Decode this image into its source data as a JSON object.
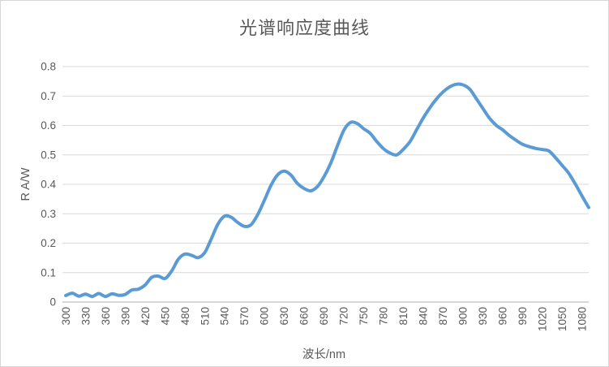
{
  "chart": {
    "title": "光谱响应度曲线",
    "x_axis_title": "波长/nm",
    "y_axis_title": "R A/W"
  },
  "chart_data": {
    "type": "line",
    "title": "光谱响应度曲线",
    "xlabel": "波长/nm",
    "ylabel": "R A/W",
    "legend": "none",
    "grid": "horizontal",
    "line_color": "#5b9bd5",
    "style": {
      "grid_color": "#d9d9d9",
      "axis_color": "#bfbfbf",
      "text_color": "#595959",
      "background": "#ffffff"
    },
    "xlim": [
      300,
      1090
    ],
    "ylim": [
      0,
      0.8
    ],
    "x_ticks": [
      300,
      330,
      360,
      390,
      420,
      450,
      480,
      510,
      540,
      570,
      600,
      630,
      660,
      690,
      720,
      750,
      780,
      810,
      840,
      870,
      900,
      930,
      960,
      990,
      1020,
      1050,
      1080
    ],
    "y_ticks": [
      0,
      0.1,
      0.2,
      0.3,
      0.4,
      0.5,
      0.6,
      0.7,
      0.8
    ],
    "x": [
      300,
      310,
      320,
      330,
      340,
      350,
      360,
      370,
      380,
      390,
      400,
      410,
      420,
      430,
      440,
      450,
      460,
      470,
      480,
      490,
      500,
      510,
      520,
      530,
      540,
      550,
      560,
      570,
      580,
      590,
      600,
      610,
      620,
      630,
      640,
      650,
      660,
      670,
      680,
      690,
      700,
      710,
      720,
      730,
      740,
      750,
      760,
      770,
      780,
      790,
      800,
      810,
      820,
      830,
      840,
      850,
      860,
      870,
      880,
      890,
      900,
      910,
      920,
      930,
      940,
      950,
      960,
      970,
      980,
      990,
      1000,
      1010,
      1020,
      1030,
      1040,
      1050,
      1060,
      1070,
      1080,
      1090
    ],
    "values": [
      0.022,
      0.03,
      0.02,
      0.027,
      0.019,
      0.029,
      0.019,
      0.028,
      0.023,
      0.026,
      0.041,
      0.044,
      0.058,
      0.084,
      0.088,
      0.08,
      0.105,
      0.145,
      0.163,
      0.159,
      0.151,
      0.168,
      0.215,
      0.265,
      0.292,
      0.288,
      0.27,
      0.257,
      0.263,
      0.297,
      0.345,
      0.396,
      0.432,
      0.445,
      0.432,
      0.403,
      0.386,
      0.378,
      0.392,
      0.425,
      0.47,
      0.528,
      0.583,
      0.61,
      0.607,
      0.589,
      0.573,
      0.545,
      0.521,
      0.506,
      0.5,
      0.519,
      0.545,
      0.585,
      0.625,
      0.66,
      0.69,
      0.714,
      0.731,
      0.74,
      0.738,
      0.724,
      0.692,
      0.658,
      0.625,
      0.601,
      0.585,
      0.566,
      0.55,
      0.536,
      0.528,
      0.522,
      0.518,
      0.513,
      0.49,
      0.464,
      0.437,
      0.4,
      0.36,
      0.321
    ]
  }
}
